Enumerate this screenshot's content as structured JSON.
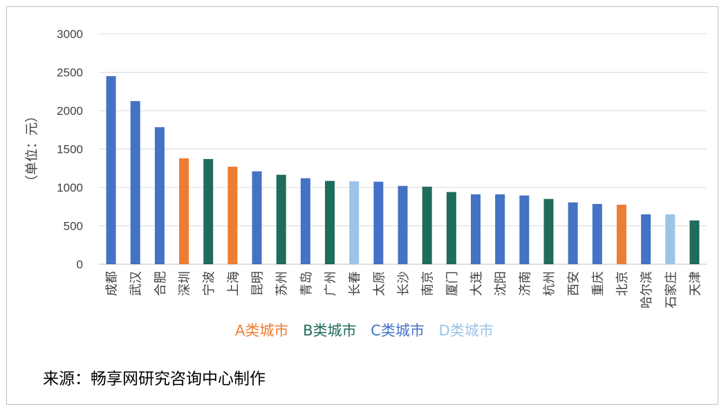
{
  "chart_data": {
    "type": "bar",
    "ylabel": "（单位：元）",
    "ylim": [
      0,
      3000
    ],
    "yticks": [
      0,
      500,
      1000,
      1500,
      2000,
      2500,
      3000
    ],
    "grid": true,
    "categories": [
      "成都",
      "武汉",
      "合肥",
      "深圳",
      "宁波",
      "上海",
      "昆明",
      "苏州",
      "青岛",
      "广州",
      "长春",
      "太原",
      "长沙",
      "南京",
      "厦门",
      "大连",
      "沈阳",
      "济南",
      "杭州",
      "西安",
      "重庆",
      "北京",
      "哈尔滨",
      "石家庄",
      "天津"
    ],
    "values": [
      2450,
      2125,
      1785,
      1380,
      1370,
      1270,
      1210,
      1165,
      1120,
      1085,
      1080,
      1075,
      1020,
      1010,
      940,
      910,
      910,
      895,
      850,
      805,
      785,
      775,
      650,
      650,
      570
    ],
    "classes": [
      "C",
      "C",
      "C",
      "A",
      "B",
      "A",
      "C",
      "B",
      "C",
      "B",
      "D",
      "C",
      "C",
      "B",
      "B",
      "C",
      "C",
      "C",
      "B",
      "C",
      "C",
      "A",
      "C",
      "D",
      "B"
    ],
    "class_colors": {
      "A": "#ed7d31",
      "B": "#1f6b5c",
      "C": "#4472c4",
      "D": "#9dc3e6"
    },
    "legend": [
      {
        "key": "A",
        "label": "A类城市"
      },
      {
        "key": "B",
        "label": "B类城市"
      },
      {
        "key": "C",
        "label": "C类城市"
      },
      {
        "key": "D",
        "label": "D类城市"
      }
    ]
  },
  "source": "来源：畅享网研究咨询中心制作"
}
